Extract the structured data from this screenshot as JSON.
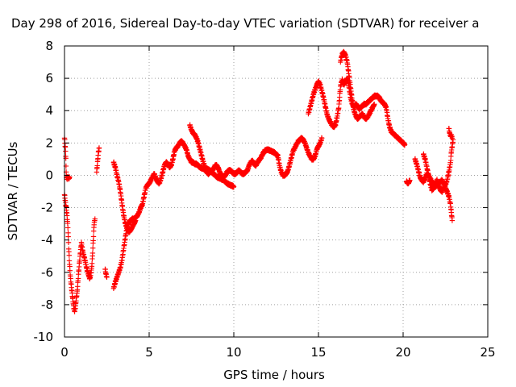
{
  "chart_data": {
    "type": "scatter",
    "title": "Day 298 of 2016, Sidereal Day-to-day VTEC variation (SDTVAR) for receiver a",
    "xlabel": "GPS time / hours",
    "ylabel": "SDTVAR / TECUs",
    "xlim": [
      0,
      25
    ],
    "ylim": [
      -10,
      8
    ],
    "xticks": [
      0,
      5,
      10,
      15,
      20,
      25
    ],
    "yticks": [
      -10,
      -8,
      -6,
      -4,
      -2,
      0,
      2,
      4,
      6,
      8
    ],
    "grid": true,
    "legend": "none",
    "marker": "plus",
    "color": "#ff0000",
    "segments": [
      [
        [
          0.0,
          2.3
        ],
        [
          0.05,
          1.7
        ],
        [
          0.08,
          1.0
        ],
        [
          0.1,
          0.2
        ],
        [
          0.12,
          -0.1
        ],
        [
          0.15,
          -0.2
        ],
        [
          0.2,
          -0.1
        ],
        [
          0.25,
          -0.2
        ],
        [
          0.3,
          -0.1
        ]
      ],
      [
        [
          0.0,
          -1.2
        ],
        [
          0.05,
          -1.6
        ],
        [
          0.1,
          -2.0
        ],
        [
          0.15,
          -2.5
        ],
        [
          0.2,
          -3.2
        ],
        [
          0.25,
          -4.5
        ],
        [
          0.3,
          -5.5
        ],
        [
          0.35,
          -6.3
        ],
        [
          0.4,
          -6.8
        ],
        [
          0.45,
          -7.3
        ],
        [
          0.5,
          -7.8
        ],
        [
          0.55,
          -8.2
        ],
        [
          0.6,
          -8.4
        ],
        [
          0.65,
          -8.1
        ],
        [
          0.7,
          -7.6
        ],
        [
          0.75,
          -7.2
        ],
        [
          0.8,
          -6.5
        ],
        [
          0.85,
          -5.8
        ],
        [
          0.9,
          -5.2
        ],
        [
          0.95,
          -4.6
        ],
        [
          1.0,
          -4.2
        ],
        [
          1.05,
          -4.5
        ],
        [
          1.1,
          -4.8
        ],
        [
          1.2,
          -5.2
        ],
        [
          1.3,
          -5.7
        ],
        [
          1.4,
          -6.1
        ],
        [
          1.5,
          -6.4
        ],
        [
          1.6,
          -5.8
        ],
        [
          1.65,
          -5.0
        ],
        [
          1.7,
          -4.0
        ],
        [
          1.75,
          -3.0
        ],
        [
          1.8,
          -2.7
        ]
      ],
      [
        [
          1.9,
          0.2
        ],
        [
          1.95,
          0.8
        ],
        [
          2.0,
          1.4
        ],
        [
          2.05,
          1.7
        ]
      ],
      [
        [
          2.4,
          -5.8
        ],
        [
          2.45,
          -6.1
        ],
        [
          2.5,
          -6.3
        ]
      ],
      [
        [
          2.9,
          -7.0
        ],
        [
          3.0,
          -6.6
        ],
        [
          3.1,
          -6.3
        ],
        [
          3.2,
          -6.0
        ],
        [
          3.3,
          -5.7
        ],
        [
          3.4,
          -5.2
        ],
        [
          3.5,
          -4.5
        ],
        [
          3.6,
          -3.8
        ],
        [
          3.7,
          -3.2
        ],
        [
          3.8,
          -2.9
        ],
        [
          3.9,
          -2.8
        ],
        [
          4.0,
          -2.7
        ],
        [
          4.1,
          -2.7
        ],
        [
          4.2,
          -2.6
        ],
        [
          4.3,
          -2.5
        ],
        [
          4.4,
          -2.3
        ],
        [
          4.5,
          -2.0
        ],
        [
          4.6,
          -1.8
        ],
        [
          4.7,
          -1.3
        ],
        [
          4.8,
          -0.8
        ],
        [
          4.9,
          -0.6
        ],
        [
          5.0,
          -0.5
        ],
        [
          5.1,
          -0.3
        ],
        [
          5.2,
          -0.1
        ],
        [
          5.3,
          0.1
        ],
        [
          5.4,
          -0.2
        ],
        [
          5.5,
          -0.4
        ],
        [
          5.6,
          -0.5
        ],
        [
          5.7,
          -0.2
        ],
        [
          5.8,
          0.2
        ],
        [
          5.9,
          0.6
        ],
        [
          6.0,
          0.8
        ],
        [
          6.1,
          0.7
        ],
        [
          6.2,
          0.5
        ],
        [
          6.3,
          0.6
        ],
        [
          6.4,
          1.0
        ],
        [
          6.5,
          1.5
        ],
        [
          6.6,
          1.7
        ],
        [
          6.7,
          1.8
        ],
        [
          6.8,
          2.0
        ],
        [
          6.9,
          2.1
        ],
        [
          7.0,
          2.0
        ],
        [
          7.1,
          1.8
        ],
        [
          7.2,
          1.6
        ],
        [
          7.3,
          1.2
        ],
        [
          7.4,
          1.0
        ],
        [
          7.5,
          0.8
        ],
        [
          7.6,
          0.8
        ],
        [
          7.7,
          0.7
        ],
        [
          7.8,
          0.7
        ],
        [
          7.9,
          0.6
        ],
        [
          8.0,
          0.5
        ],
        [
          8.2,
          0.4
        ],
        [
          8.4,
          0.4
        ],
        [
          8.6,
          0.3
        ],
        [
          8.8,
          0.1
        ],
        [
          9.0,
          -0.1
        ],
        [
          9.2,
          -0.2
        ],
        [
          9.4,
          -0.3
        ],
        [
          9.6,
          -0.5
        ],
        [
          9.8,
          -0.6
        ],
        [
          10.0,
          -0.7
        ]
      ],
      [
        [
          2.9,
          0.8
        ],
        [
          3.0,
          0.5
        ],
        [
          3.1,
          0.0
        ],
        [
          3.2,
          -0.4
        ],
        [
          3.3,
          -1.0
        ],
        [
          3.4,
          -1.8
        ],
        [
          3.5,
          -2.5
        ],
        [
          3.6,
          -3.0
        ],
        [
          3.7,
          -3.3
        ],
        [
          3.8,
          -3.5
        ],
        [
          3.9,
          -3.4
        ],
        [
          4.0,
          -3.2
        ],
        [
          4.1,
          -3.0
        ],
        [
          4.2,
          -2.8
        ]
      ],
      [
        [
          7.4,
          3.1
        ],
        [
          7.5,
          2.8
        ],
        [
          7.6,
          2.6
        ],
        [
          7.7,
          2.5
        ],
        [
          7.8,
          2.3
        ],
        [
          7.9,
          2.0
        ],
        [
          8.0,
          1.6
        ],
        [
          8.1,
          1.2
        ],
        [
          8.2,
          0.8
        ],
        [
          8.3,
          0.5
        ],
        [
          8.4,
          0.2
        ],
        [
          8.5,
          0.1
        ],
        [
          8.6,
          0.2
        ],
        [
          8.7,
          0.3
        ],
        [
          8.8,
          0.4
        ],
        [
          8.9,
          0.6
        ],
        [
          9.0,
          0.6
        ],
        [
          9.1,
          0.4
        ],
        [
          9.2,
          0.1
        ],
        [
          9.3,
          0.0
        ],
        [
          9.4,
          -0.1
        ],
        [
          9.5,
          0.0
        ],
        [
          9.6,
          0.2
        ],
        [
          9.7,
          0.3
        ],
        [
          9.8,
          0.3
        ],
        [
          9.9,
          0.2
        ],
        [
          10.0,
          0.1
        ],
        [
          10.1,
          0.1
        ],
        [
          10.2,
          0.2
        ],
        [
          10.3,
          0.3
        ],
        [
          10.4,
          0.2
        ],
        [
          10.5,
          0.1
        ],
        [
          10.6,
          0.1
        ],
        [
          10.7,
          0.2
        ],
        [
          10.8,
          0.3
        ],
        [
          10.9,
          0.6
        ],
        [
          11.0,
          0.8
        ],
        [
          11.1,
          0.9
        ],
        [
          11.2,
          0.7
        ],
        [
          11.3,
          0.6
        ],
        [
          11.4,
          0.8
        ],
        [
          11.6,
          1.1
        ],
        [
          11.8,
          1.5
        ],
        [
          12.0,
          1.6
        ],
        [
          12.2,
          1.5
        ],
        [
          12.4,
          1.4
        ],
        [
          12.6,
          1.2
        ],
        [
          12.7,
          0.6
        ],
        [
          12.8,
          0.2
        ],
        [
          12.9,
          0.0
        ],
        [
          13.0,
          0.0
        ],
        [
          13.1,
          0.1
        ],
        [
          13.2,
          0.3
        ],
        [
          13.3,
          0.7
        ],
        [
          13.4,
          1.1
        ],
        [
          13.5,
          1.5
        ],
        [
          13.6,
          1.7
        ],
        [
          13.7,
          1.9
        ],
        [
          13.8,
          2.1
        ],
        [
          13.9,
          2.2
        ],
        [
          14.0,
          2.3
        ],
        [
          14.1,
          2.2
        ],
        [
          14.2,
          2.0
        ],
        [
          14.3,
          1.7
        ],
        [
          14.4,
          1.4
        ],
        [
          14.5,
          1.2
        ],
        [
          14.6,
          1.0
        ],
        [
          14.7,
          1.0
        ],
        [
          14.8,
          1.2
        ],
        [
          14.9,
          1.6
        ],
        [
          15.0,
          1.8
        ],
        [
          15.1,
          2.0
        ],
        [
          15.2,
          2.3
        ]
      ],
      [
        [
          14.4,
          3.8
        ],
        [
          14.5,
          4.2
        ],
        [
          14.6,
          4.6
        ],
        [
          14.7,
          5.0
        ],
        [
          14.8,
          5.3
        ],
        [
          14.9,
          5.6
        ],
        [
          15.0,
          5.8
        ],
        [
          15.1,
          5.6
        ],
        [
          15.2,
          5.2
        ],
        [
          15.3,
          4.8
        ],
        [
          15.4,
          4.3
        ],
        [
          15.5,
          3.8
        ],
        [
          15.6,
          3.5
        ],
        [
          15.7,
          3.3
        ],
        [
          15.8,
          3.1
        ],
        [
          15.9,
          3.0
        ],
        [
          16.0,
          3.1
        ],
        [
          16.1,
          3.6
        ],
        [
          16.2,
          4.2
        ],
        [
          16.3,
          5.5
        ],
        [
          16.4,
          5.9
        ],
        [
          16.5,
          5.6
        ],
        [
          16.6,
          5.8
        ],
        [
          16.7,
          6.0
        ],
        [
          16.8,
          5.5
        ],
        [
          16.9,
          4.8
        ],
        [
          17.0,
          4.4
        ],
        [
          17.1,
          4.2
        ],
        [
          17.2,
          4.4
        ],
        [
          17.3,
          4.3
        ],
        [
          17.4,
          4.1
        ],
        [
          17.5,
          4.2
        ],
        [
          17.6,
          4.3
        ],
        [
          17.7,
          4.4
        ],
        [
          17.8,
          4.4
        ],
        [
          17.9,
          4.5
        ],
        [
          18.0,
          4.6
        ],
        [
          18.1,
          4.7
        ],
        [
          18.2,
          4.8
        ],
        [
          18.3,
          4.9
        ],
        [
          18.4,
          4.9
        ],
        [
          18.5,
          4.9
        ],
        [
          18.6,
          4.8
        ],
        [
          18.7,
          4.6
        ],
        [
          18.8,
          4.5
        ],
        [
          18.9,
          4.4
        ],
        [
          19.0,
          4.2
        ],
        [
          19.1,
          3.5
        ],
        [
          19.2,
          3.0
        ],
        [
          19.3,
          2.7
        ],
        [
          19.4,
          2.6
        ],
        [
          19.5,
          2.5
        ],
        [
          19.6,
          2.4
        ],
        [
          19.7,
          2.3
        ],
        [
          19.8,
          2.2
        ],
        [
          19.9,
          2.1
        ],
        [
          20.0,
          2.0
        ],
        [
          20.1,
          1.9
        ]
      ],
      [
        [
          16.3,
          7.0
        ],
        [
          16.4,
          7.5
        ],
        [
          16.5,
          7.6
        ],
        [
          16.6,
          7.4
        ],
        [
          16.7,
          7.0
        ],
        [
          16.8,
          6.2
        ],
        [
          16.9,
          5.4
        ],
        [
          17.0,
          4.6
        ],
        [
          17.1,
          4.0
        ],
        [
          17.2,
          3.7
        ],
        [
          17.3,
          3.5
        ],
        [
          17.4,
          3.6
        ],
        [
          17.5,
          3.7
        ],
        [
          17.6,
          3.8
        ],
        [
          17.7,
          3.6
        ],
        [
          17.8,
          3.5
        ],
        [
          17.9,
          3.6
        ],
        [
          18.0,
          3.8
        ],
        [
          18.1,
          4.0
        ],
        [
          18.2,
          4.2
        ],
        [
          18.3,
          4.4
        ]
      ],
      [
        [
          20.2,
          -0.4
        ],
        [
          20.3,
          -0.5
        ],
        [
          20.4,
          -0.3
        ]
      ],
      [
        [
          20.7,
          1.0
        ],
        [
          20.8,
          0.7
        ],
        [
          20.9,
          0.3
        ],
        [
          21.0,
          -0.1
        ],
        [
          21.1,
          -0.3
        ],
        [
          21.2,
          -0.4
        ],
        [
          21.3,
          -0.2
        ],
        [
          21.4,
          0.1
        ],
        [
          21.5,
          0.0
        ],
        [
          21.6,
          -0.2
        ],
        [
          21.7,
          -0.4
        ],
        [
          21.8,
          -0.6
        ],
        [
          21.9,
          -0.7
        ],
        [
          22.0,
          -0.6
        ],
        [
          22.1,
          -0.5
        ],
        [
          22.2,
          -0.4
        ],
        [
          22.3,
          -0.3
        ],
        [
          22.4,
          -0.5
        ],
        [
          22.5,
          -0.8
        ],
        [
          22.6,
          -1.0
        ],
        [
          22.7,
          -1.3
        ],
        [
          22.8,
          -1.8
        ],
        [
          22.85,
          -2.3
        ],
        [
          22.9,
          -2.8
        ]
      ],
      [
        [
          21.2,
          1.3
        ],
        [
          21.3,
          1.0
        ],
        [
          21.4,
          0.5
        ],
        [
          21.5,
          0.0
        ],
        [
          21.6,
          -0.5
        ],
        [
          21.7,
          -0.9
        ],
        [
          21.8,
          -0.8
        ],
        [
          21.9,
          -0.5
        ],
        [
          22.0,
          -0.3
        ],
        [
          22.1,
          -0.6
        ],
        [
          22.2,
          -0.9
        ],
        [
          22.3,
          -1.0
        ],
        [
          22.4,
          -0.8
        ],
        [
          22.5,
          -0.6
        ],
        [
          22.6,
          -0.3
        ],
        [
          22.7,
          0.2
        ],
        [
          22.8,
          0.8
        ],
        [
          22.85,
          1.5
        ],
        [
          22.9,
          1.8
        ],
        [
          22.95,
          2.2
        ]
      ],
      [
        [
          22.7,
          2.9
        ],
        [
          22.75,
          2.6
        ],
        [
          22.8,
          2.4
        ],
        [
          22.85,
          2.5
        ],
        [
          22.9,
          2.3
        ]
      ]
    ]
  }
}
